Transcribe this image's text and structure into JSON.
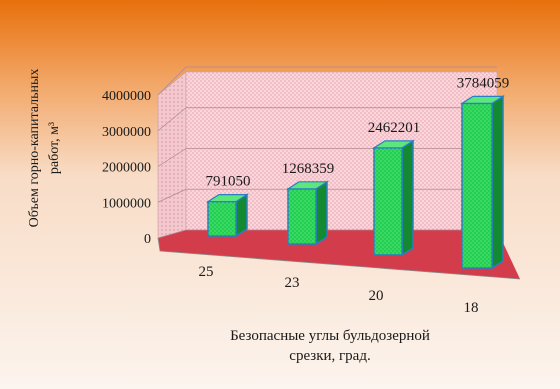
{
  "chart_data": {
    "type": "bar",
    "variant": "3d-column",
    "categories": [
      "25",
      "23",
      "20",
      "18"
    ],
    "values": [
      791050,
      1268359,
      2462201,
      3784059
    ],
    "data_labels": [
      "791050",
      "1268359",
      "2462201",
      "3784059"
    ],
    "y_ticks": [
      "0",
      "1000000",
      "2000000",
      "3000000",
      "4000000"
    ],
    "ylim": [
      0,
      4000000
    ],
    "ylabel_line1": "Объем горно-капитальных",
    "ylabel_line2": "работ, м³",
    "xlabel_line1": "Безопасные углы бульдозерной",
    "xlabel_line2": "срезки, град.",
    "grid": true,
    "colors": {
      "bar_front": "#21cc4d",
      "bar_side": "#138a32",
      "bar_top": "#5ee67e",
      "bar_outline": "#2a7fc0",
      "back_wall": "#f7cfd6",
      "floor": "#d23a4a",
      "background_top": "#e8730f",
      "background_bottom": "#fbf1e9"
    }
  }
}
